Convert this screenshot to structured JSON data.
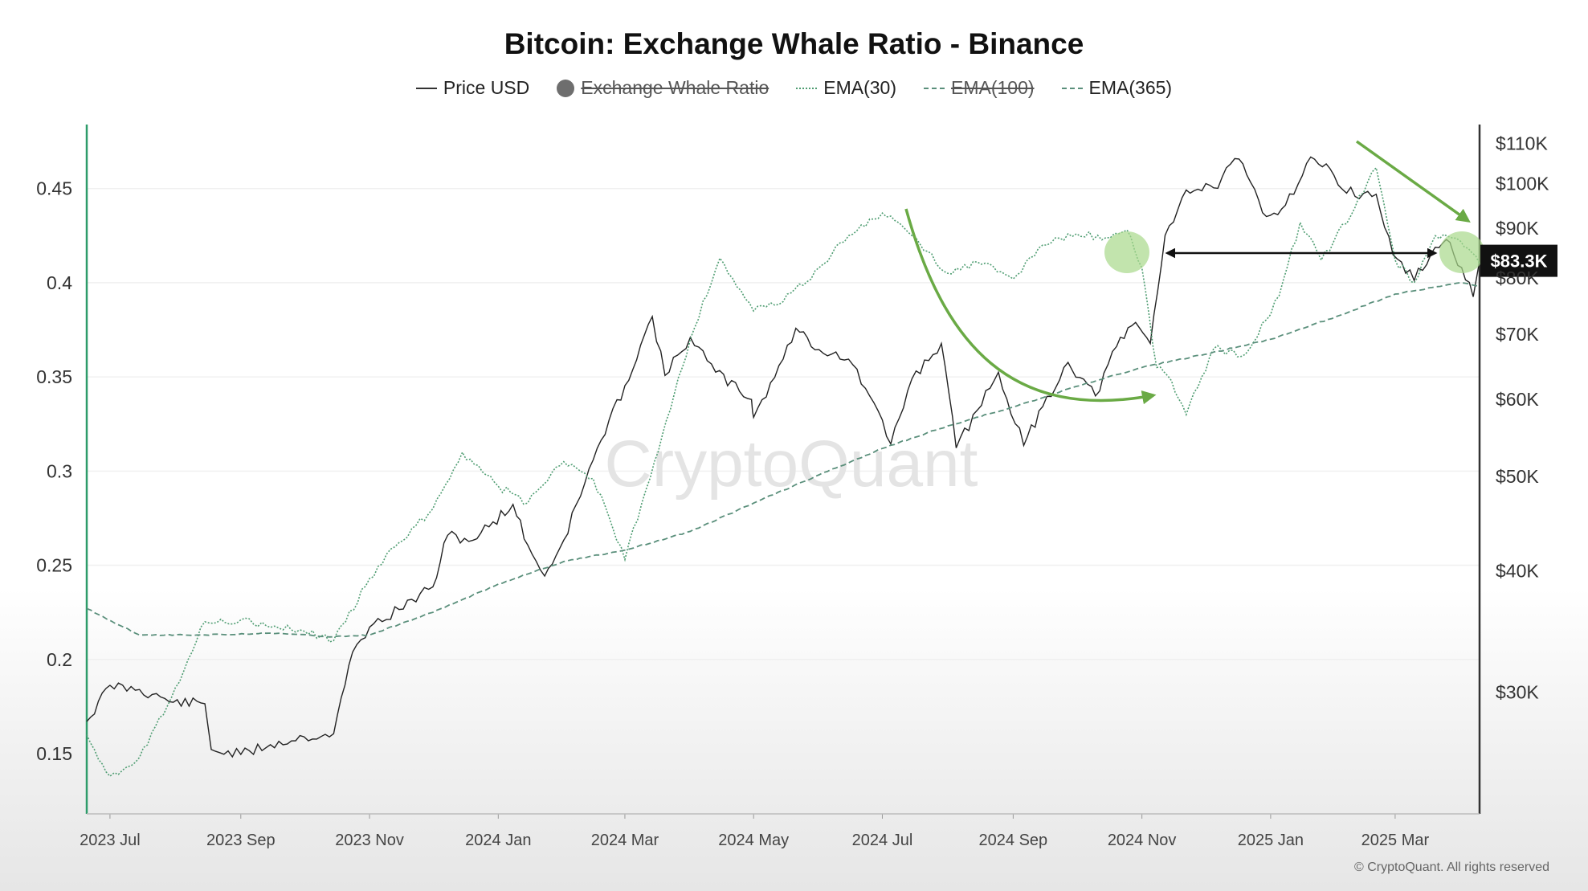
{
  "chart_data": {
    "type": "line",
    "title": "Bitcoin: Exchange Whale Ratio - Binance",
    "legend": [
      {
        "label": "Price USD",
        "style": "solid",
        "hidden": false
      },
      {
        "label": "Exchange Whale Ratio",
        "style": "dot",
        "hidden": true
      },
      {
        "label": "EMA(30)",
        "style": "dotted",
        "hidden": false
      },
      {
        "label": "EMA(100)",
        "style": "dashed",
        "hidden": true
      },
      {
        "label": "EMA(365)",
        "style": "dashed",
        "hidden": false
      }
    ],
    "x_ticks": [
      "2023 Jul",
      "2023 Sep",
      "2023 Nov",
      "2024 Jan",
      "2024 Mar",
      "2024 May",
      "2024 Jul",
      "2024 Sep",
      "2024 Nov",
      "2025 Jan",
      "2025 Mar"
    ],
    "x_range": [
      "2023-06-20",
      "2025-04-10"
    ],
    "y_left": {
      "ticks": [
        0.15,
        0.2,
        0.25,
        0.3,
        0.35,
        0.4,
        0.45
      ],
      "tick_labels": [
        "0.15",
        "0.2",
        "0.25",
        "0.3",
        "0.35",
        "0.4",
        "0.45"
      ],
      "range": [
        0.118,
        0.484
      ]
    },
    "y_right": {
      "scale": "log",
      "ticks": [
        30000,
        40000,
        50000,
        60000,
        70000,
        80000,
        90000,
        100000,
        110000
      ],
      "tick_labels": [
        "$30K",
        "$40K",
        "$50K",
        "$60K",
        "$70K",
        "$80K",
        "$90K",
        "$100K",
        "$110K"
      ],
      "range": [
        22500,
        115000
      ]
    },
    "current_price_label": "$83.3K",
    "current_price": 83300,
    "series": [
      {
        "name": "Price USD",
        "axis": "right",
        "color": "#222222",
        "points": [
          [
            "2023-06-20",
            28000
          ],
          [
            "2023-07-01",
            30500
          ],
          [
            "2023-07-15",
            30200
          ],
          [
            "2023-07-31",
            29300
          ],
          [
            "2023-08-15",
            29200
          ],
          [
            "2023-08-18",
            26200
          ],
          [
            "2023-09-01",
            25900
          ],
          [
            "2023-09-15",
            26500
          ],
          [
            "2023-10-01",
            27000
          ],
          [
            "2023-10-15",
            27200
          ],
          [
            "2023-10-24",
            33000
          ],
          [
            "2023-11-01",
            35000
          ],
          [
            "2023-11-15",
            36500
          ],
          [
            "2023-12-01",
            38500
          ],
          [
            "2023-12-08",
            43500
          ],
          [
            "2023-12-20",
            43000
          ],
          [
            "2024-01-08",
            46800
          ],
          [
            "2024-01-15",
            42500
          ],
          [
            "2024-01-23",
            39500
          ],
          [
            "2024-02-01",
            43000
          ],
          [
            "2024-02-15",
            52000
          ],
          [
            "2024-03-01",
            62000
          ],
          [
            "2024-03-14",
            73000
          ],
          [
            "2024-03-20",
            63500
          ],
          [
            "2024-04-01",
            69500
          ],
          [
            "2024-04-13",
            64000
          ],
          [
            "2024-04-30",
            60000
          ],
          [
            "2024-05-01",
            57500
          ],
          [
            "2024-05-15",
            66000
          ],
          [
            "2024-05-21",
            71000
          ],
          [
            "2024-06-01",
            67500
          ],
          [
            "2024-06-15",
            66000
          ],
          [
            "2024-06-25",
            60500
          ],
          [
            "2024-07-05",
            54000
          ],
          [
            "2024-07-15",
            63000
          ],
          [
            "2024-07-29",
            68500
          ],
          [
            "2024-08-05",
            53500
          ],
          [
            "2024-08-15",
            58500
          ],
          [
            "2024-08-25",
            64000
          ],
          [
            "2024-09-06",
            53800
          ],
          [
            "2024-09-15",
            59000
          ],
          [
            "2024-09-27",
            65500
          ],
          [
            "2024-10-10",
            60500
          ],
          [
            "2024-10-20",
            68000
          ],
          [
            "2024-10-29",
            72000
          ],
          [
            "2024-11-05",
            68500
          ],
          [
            "2024-11-12",
            88500
          ],
          [
            "2024-11-22",
            98500
          ],
          [
            "2024-12-05",
            99000
          ],
          [
            "2024-12-17",
            106000
          ],
          [
            "2024-12-30",
            92500
          ],
          [
            "2025-01-08",
            95000
          ],
          [
            "2025-01-20",
            106500
          ],
          [
            "2025-01-31",
            102000
          ],
          [
            "2025-02-10",
            97000
          ],
          [
            "2025-02-20",
            97500
          ],
          [
            "2025-02-28",
            84500
          ],
          [
            "2025-03-10",
            79500
          ],
          [
            "2025-03-20",
            86000
          ],
          [
            "2025-03-27",
            87000
          ],
          [
            "2025-04-07",
            76500
          ],
          [
            "2025-04-10",
            83300
          ]
        ]
      },
      {
        "name": "EMA(30)",
        "axis": "left",
        "color": "#4f9d72",
        "points": [
          [
            "2023-06-20",
            0.16
          ],
          [
            "2023-07-01",
            0.138
          ],
          [
            "2023-07-15",
            0.148
          ],
          [
            "2023-08-01",
            0.185
          ],
          [
            "2023-08-15",
            0.22
          ],
          [
            "2023-09-01",
            0.221
          ],
          [
            "2023-09-15",
            0.217
          ],
          [
            "2023-10-01",
            0.215
          ],
          [
            "2023-10-15",
            0.21
          ],
          [
            "2023-11-01",
            0.243
          ],
          [
            "2023-11-15",
            0.262
          ],
          [
            "2023-12-01",
            0.28
          ],
          [
            "2023-12-15",
            0.31
          ],
          [
            "2024-01-01",
            0.292
          ],
          [
            "2024-01-15",
            0.283
          ],
          [
            "2024-02-01",
            0.305
          ],
          [
            "2024-02-15",
            0.296
          ],
          [
            "2024-03-01",
            0.253
          ],
          [
            "2024-03-15",
            0.305
          ],
          [
            "2024-04-01",
            0.37
          ],
          [
            "2024-04-15",
            0.413
          ],
          [
            "2024-05-01",
            0.385
          ],
          [
            "2024-05-15",
            0.39
          ],
          [
            "2024-06-01",
            0.408
          ],
          [
            "2024-06-15",
            0.425
          ],
          [
            "2024-07-01",
            0.437
          ],
          [
            "2024-07-15",
            0.425
          ],
          [
            "2024-08-01",
            0.405
          ],
          [
            "2024-08-15",
            0.411
          ],
          [
            "2024-09-01",
            0.402
          ],
          [
            "2024-09-15",
            0.42
          ],
          [
            "2024-10-01",
            0.426
          ],
          [
            "2024-10-15",
            0.424
          ],
          [
            "2024-10-25",
            0.428
          ],
          [
            "2024-11-01",
            0.408
          ],
          [
            "2024-11-08",
            0.355
          ],
          [
            "2024-11-15",
            0.348
          ],
          [
            "2024-11-22",
            0.33
          ],
          [
            "2024-12-05",
            0.365
          ],
          [
            "2024-12-20",
            0.362
          ],
          [
            "2025-01-05",
            0.393
          ],
          [
            "2025-01-15",
            0.432
          ],
          [
            "2025-01-25",
            0.412
          ],
          [
            "2025-02-10",
            0.44
          ],
          [
            "2025-02-20",
            0.461
          ],
          [
            "2025-03-01",
            0.412
          ],
          [
            "2025-03-10",
            0.4
          ],
          [
            "2025-03-20",
            0.425
          ],
          [
            "2025-04-01",
            0.422
          ],
          [
            "2025-04-10",
            0.41
          ]
        ]
      },
      {
        "name": "EMA(365)",
        "axis": "left",
        "color": "#5a8f7b",
        "points": [
          [
            "2023-06-20",
            0.227
          ],
          [
            "2023-07-15",
            0.213
          ],
          [
            "2023-08-15",
            0.213
          ],
          [
            "2023-09-15",
            0.214
          ],
          [
            "2023-10-15",
            0.212
          ],
          [
            "2023-11-01",
            0.213
          ],
          [
            "2023-12-01",
            0.225
          ],
          [
            "2024-01-01",
            0.24
          ],
          [
            "2024-02-01",
            0.252
          ],
          [
            "2024-03-01",
            0.258
          ],
          [
            "2024-04-01",
            0.268
          ],
          [
            "2024-05-01",
            0.283
          ],
          [
            "2024-06-01",
            0.298
          ],
          [
            "2024-07-01",
            0.312
          ],
          [
            "2024-08-01",
            0.324
          ],
          [
            "2024-09-01",
            0.334
          ],
          [
            "2024-10-01",
            0.345
          ],
          [
            "2024-11-01",
            0.355
          ],
          [
            "2024-12-01",
            0.362
          ],
          [
            "2025-01-01",
            0.37
          ],
          [
            "2025-02-01",
            0.382
          ],
          [
            "2025-03-01",
            0.394
          ],
          [
            "2025-04-01",
            0.4
          ],
          [
            "2025-04-10",
            0.398
          ]
        ]
      }
    ]
  },
  "footer": {
    "copyright": "© CryptoQuant. All rights reserved"
  },
  "watermark": "CryptoQuant"
}
